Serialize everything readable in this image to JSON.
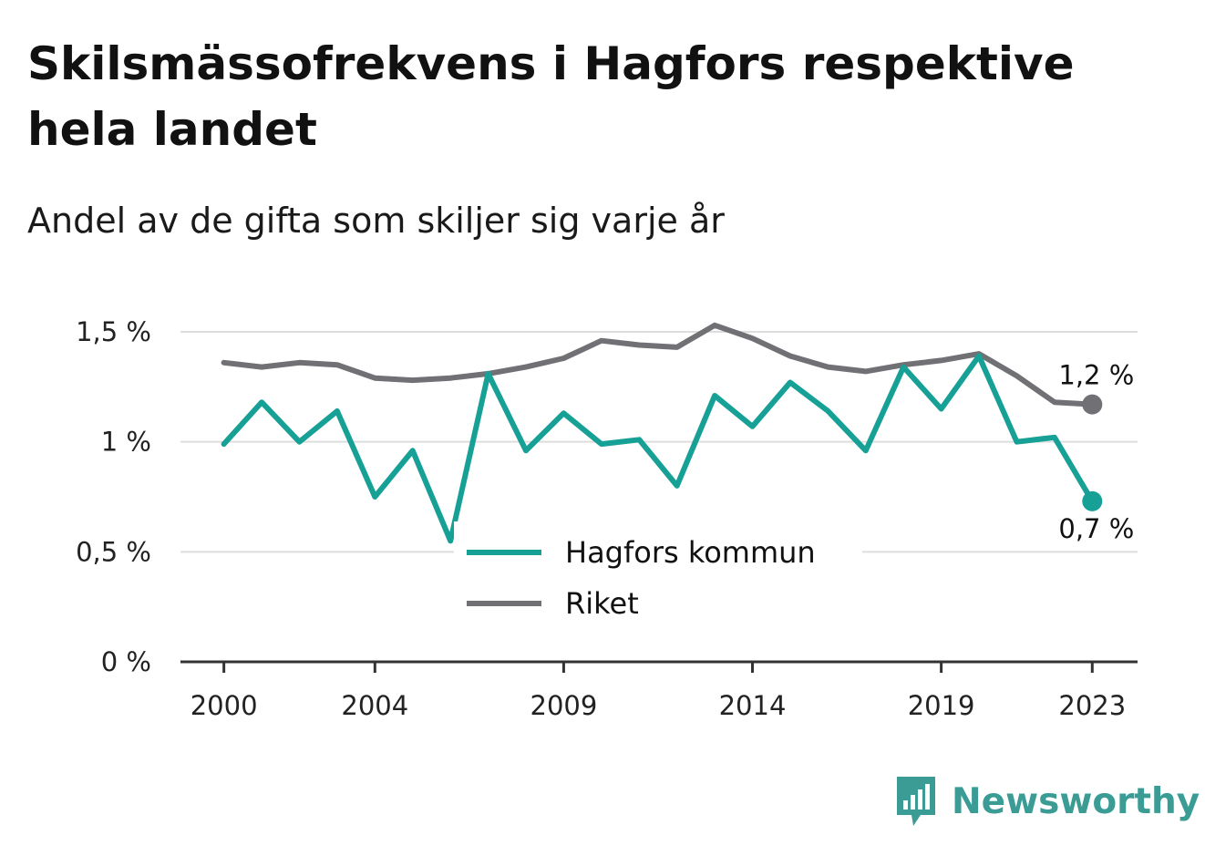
{
  "title": "Skilsmässofrekvens i Hagfors respektive hela landet",
  "subtitle": "Andel av de gifta som skiljer sig varje år",
  "brand": "Newsworthy",
  "colors": {
    "hagfors": "#16a096",
    "riket": "#707075",
    "grid": "#dddddd",
    "axis": "#333333",
    "brand": "#3a9c94"
  },
  "chart_data": {
    "type": "line",
    "x": [
      2000,
      2001,
      2002,
      2003,
      2004,
      2005,
      2006,
      2007,
      2008,
      2009,
      2010,
      2011,
      2012,
      2013,
      2014,
      2015,
      2016,
      2017,
      2018,
      2019,
      2020,
      2021,
      2022,
      2023
    ],
    "series": [
      {
        "name": "Hagfors kommun",
        "values": [
          0.99,
          1.18,
          1.0,
          1.14,
          0.75,
          0.96,
          0.55,
          1.31,
          0.96,
          1.13,
          0.99,
          1.01,
          0.8,
          1.21,
          1.07,
          1.27,
          1.14,
          0.96,
          1.34,
          1.15,
          1.39,
          1.0,
          1.02,
          0.73
        ],
        "end_label": "0,7 %"
      },
      {
        "name": "Riket",
        "values": [
          1.36,
          1.34,
          1.36,
          1.35,
          1.29,
          1.28,
          1.29,
          1.31,
          1.34,
          1.38,
          1.46,
          1.44,
          1.43,
          1.53,
          1.47,
          1.39,
          1.34,
          1.32,
          1.35,
          1.37,
          1.4,
          1.3,
          1.18,
          1.17
        ],
        "end_label": "1,2 %"
      }
    ],
    "xticks": [
      {
        "value": 2000,
        "label": "2000"
      },
      {
        "value": 2004,
        "label": "2004"
      },
      {
        "value": 2009,
        "label": "2009"
      },
      {
        "value": 2014,
        "label": "2014"
      },
      {
        "value": 2019,
        "label": "2019"
      },
      {
        "value": 2023,
        "label": "2023"
      }
    ],
    "yticks": [
      {
        "value": 0,
        "label": "0 %"
      },
      {
        "value": 0.5,
        "label": "0,5 %"
      },
      {
        "value": 1.0,
        "label": "1 %"
      },
      {
        "value": 1.5,
        "label": "1,5 %"
      }
    ],
    "xlim": [
      1998.85,
      2024.2
    ],
    "ylim": [
      0,
      1.5
    ],
    "grid": true,
    "legend_placement": "bottom-center"
  }
}
